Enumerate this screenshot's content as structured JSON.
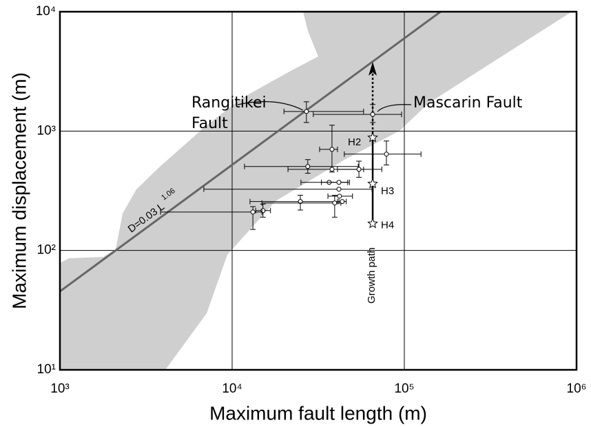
{
  "chart_data": {
    "type": "scatter",
    "xlabel": "Maximum fault length (m)",
    "ylabel": "Maximum displacement  (m)",
    "xscale": "log",
    "yscale": "log",
    "grid": true,
    "xlim": [
      1000,
      1000000
    ],
    "ylim": [
      10,
      10000
    ],
    "xticks": [
      {
        "value": 1000,
        "label": "10³"
      },
      {
        "value": 10000,
        "label": "10⁴"
      },
      {
        "value": 100000,
        "label": "10⁵"
      },
      {
        "value": 1000000,
        "label": "10⁶"
      }
    ],
    "yticks": [
      {
        "value": 10,
        "label": "10¹"
      },
      {
        "value": 100,
        "label": "10²"
      },
      {
        "value": 1000,
        "label": "10³"
      },
      {
        "value": 10000,
        "label": "10⁴"
      }
    ],
    "x": [
      27000,
      65500,
      38000,
      27500,
      38000,
      54500,
      78700,
      36600,
      41700,
      41700,
      42000,
      24900,
      39400,
      43600,
      15100,
      13200
    ],
    "y": [
      1460,
      1380,
      703,
      505,
      478,
      478,
      641,
      372,
      372,
      326,
      285,
      257,
      250,
      257,
      216,
      210
    ],
    "x_err_low": [
      20000,
      29600,
      32200,
      11800,
      21100,
      40900,
      44800,
      25100,
      33000,
      6850,
      36000,
      12700,
      14900,
      40900,
      13700,
      3840
    ],
    "x_err_high": [
      58000,
      96400,
      40900,
      54000,
      58000,
      74000,
      125000,
      46900,
      48000,
      64900,
      50000,
      41700,
      42800,
      46000,
      16700,
      14900
    ],
    "y_err_low": [
      1180,
      1180,
      454,
      443,
      null,
      410,
      520,
      null,
      null,
      null,
      null,
      218,
      190,
      null,
      190,
      150
    ],
    "y_err_high": [
      1760,
      1670,
      1120,
      577,
      null,
      560,
      826,
      null,
      null,
      null,
      null,
      290,
      290,
      null,
      245,
      233
    ],
    "stars": {
      "x": [
        65500,
        65500,
        65500
      ],
      "y": [
        881,
        362,
        168
      ],
      "labels": [
        "H2",
        "H3",
        "H4"
      ]
    },
    "growth_path": {
      "label": "Growth path",
      "arrow_top": 3800
    },
    "fit": {
      "label": "D=0.03 L",
      "exponent_label": "1.06",
      "a": 0.03,
      "b": 1.06,
      "color": "#666666"
    },
    "annotations": [
      "Rangitikei",
      "Fault",
      "Mascarin Fault"
    ]
  }
}
